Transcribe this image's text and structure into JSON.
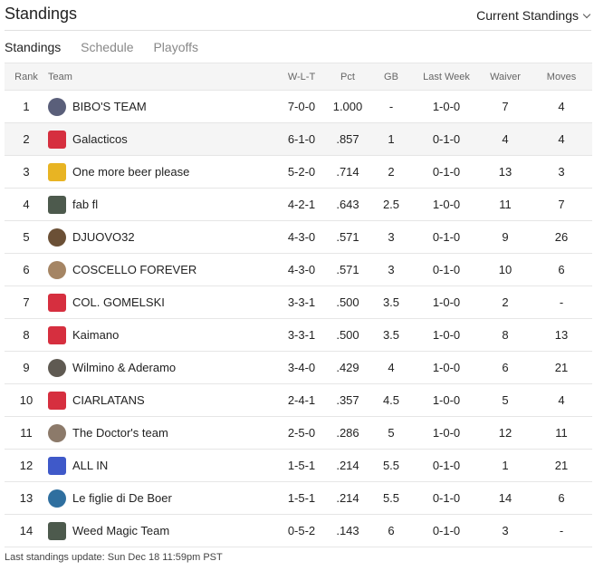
{
  "header": {
    "title": "Standings",
    "dropdown_label": "Current Standings"
  },
  "tabs": [
    {
      "label": "Standings",
      "active": true
    },
    {
      "label": "Schedule",
      "active": false
    },
    {
      "label": "Playoffs",
      "active": false
    }
  ],
  "table": {
    "columns": [
      "Rank",
      "Team",
      "W-L-T",
      "Pct",
      "GB",
      "Last Week",
      "Waiver",
      "Moves"
    ],
    "rows": [
      {
        "rank": "1",
        "team": "BIBO'S TEAM",
        "wlt": "7-0-0",
        "pct": "1.000",
        "gb": "-",
        "last_week": "1-0-0",
        "waiver": "7",
        "moves": "4",
        "avatar": "team-logo-icon",
        "avatar_color": "#5a5f7a",
        "highlight": false
      },
      {
        "rank": "2",
        "team": "Galacticos",
        "wlt": "6-1-0",
        "pct": ".857",
        "gb": "1",
        "last_week": "0-1-0",
        "waiver": "4",
        "moves": "4",
        "avatar": "red-jersey-icon",
        "avatar_color": "#d62f3f",
        "highlight": true
      },
      {
        "rank": "3",
        "team": "One more beer please",
        "wlt": "5-2-0",
        "pct": ".714",
        "gb": "2",
        "last_week": "0-1-0",
        "waiver": "13",
        "moves": "3",
        "avatar": "yellow-jersey-icon",
        "avatar_color": "#e8b423",
        "highlight": false
      },
      {
        "rank": "4",
        "team": "fab fl",
        "wlt": "4-2-1",
        "pct": ".643",
        "gb": "2.5",
        "last_week": "1-0-0",
        "waiver": "11",
        "moves": "7",
        "avatar": "dark-jersey-icon",
        "avatar_color": "#4d5a4d",
        "highlight": false
      },
      {
        "rank": "5",
        "team": "DJUOVO32",
        "wlt": "4-3-0",
        "pct": ".571",
        "gb": "3",
        "last_week": "0-1-0",
        "waiver": "9",
        "moves": "26",
        "avatar": "photo-avatar-icon",
        "avatar_color": "#6b5036",
        "highlight": false
      },
      {
        "rank": "6",
        "team": "COSCELLO FOREVER",
        "wlt": "4-3-0",
        "pct": ".571",
        "gb": "3",
        "last_week": "0-1-0",
        "waiver": "10",
        "moves": "6",
        "avatar": "photo-avatar-icon",
        "avatar_color": "#a58564",
        "highlight": false
      },
      {
        "rank": "7",
        "team": "COL. GOMELSKI",
        "wlt": "3-3-1",
        "pct": ".500",
        "gb": "3.5",
        "last_week": "1-0-0",
        "waiver": "2",
        "moves": "-",
        "avatar": "red-jersey-icon",
        "avatar_color": "#d62f3f",
        "highlight": false
      },
      {
        "rank": "8",
        "team": "Kaimano",
        "wlt": "3-3-1",
        "pct": ".500",
        "gb": "3.5",
        "last_week": "1-0-0",
        "waiver": "8",
        "moves": "13",
        "avatar": "red-jersey-icon",
        "avatar_color": "#d62f3f",
        "highlight": false
      },
      {
        "rank": "9",
        "team": "Wilmino & Aderamo",
        "wlt": "3-4-0",
        "pct": ".429",
        "gb": "4",
        "last_week": "1-0-0",
        "waiver": "6",
        "moves": "21",
        "avatar": "photo-avatar-icon",
        "avatar_color": "#5f5a52",
        "highlight": false
      },
      {
        "rank": "10",
        "team": "CIARLATANS",
        "wlt": "2-4-1",
        "pct": ".357",
        "gb": "4.5",
        "last_week": "1-0-0",
        "waiver": "5",
        "moves": "4",
        "avatar": "red-jersey-icon",
        "avatar_color": "#d62f3f",
        "highlight": false
      },
      {
        "rank": "11",
        "team": "The Doctor's team",
        "wlt": "2-5-0",
        "pct": ".286",
        "gb": "5",
        "last_week": "1-0-0",
        "waiver": "12",
        "moves": "11",
        "avatar": "photo-avatar-icon",
        "avatar_color": "#8c7a6a",
        "highlight": false
      },
      {
        "rank": "12",
        "team": "ALL IN",
        "wlt": "1-5-1",
        "pct": ".214",
        "gb": "5.5",
        "last_week": "0-1-0",
        "waiver": "1",
        "moves": "21",
        "avatar": "blue-jersey-icon",
        "avatar_color": "#3f59c9",
        "highlight": false
      },
      {
        "rank": "13",
        "team": "Le figlie di De Boer",
        "wlt": "1-5-1",
        "pct": ".214",
        "gb": "5.5",
        "last_week": "0-1-0",
        "waiver": "14",
        "moves": "6",
        "avatar": "photo-avatar-icon",
        "avatar_color": "#2f6f9f",
        "highlight": false
      },
      {
        "rank": "14",
        "team": "Weed Magic Team",
        "wlt": "0-5-2",
        "pct": ".143",
        "gb": "6",
        "last_week": "0-1-0",
        "waiver": "3",
        "moves": "-",
        "avatar": "dark-jersey-icon",
        "avatar_color": "#4d5a4d",
        "highlight": false
      }
    ]
  },
  "footer": {
    "text": "Last standings update: Sun Dec 18 11:59pm PST"
  }
}
